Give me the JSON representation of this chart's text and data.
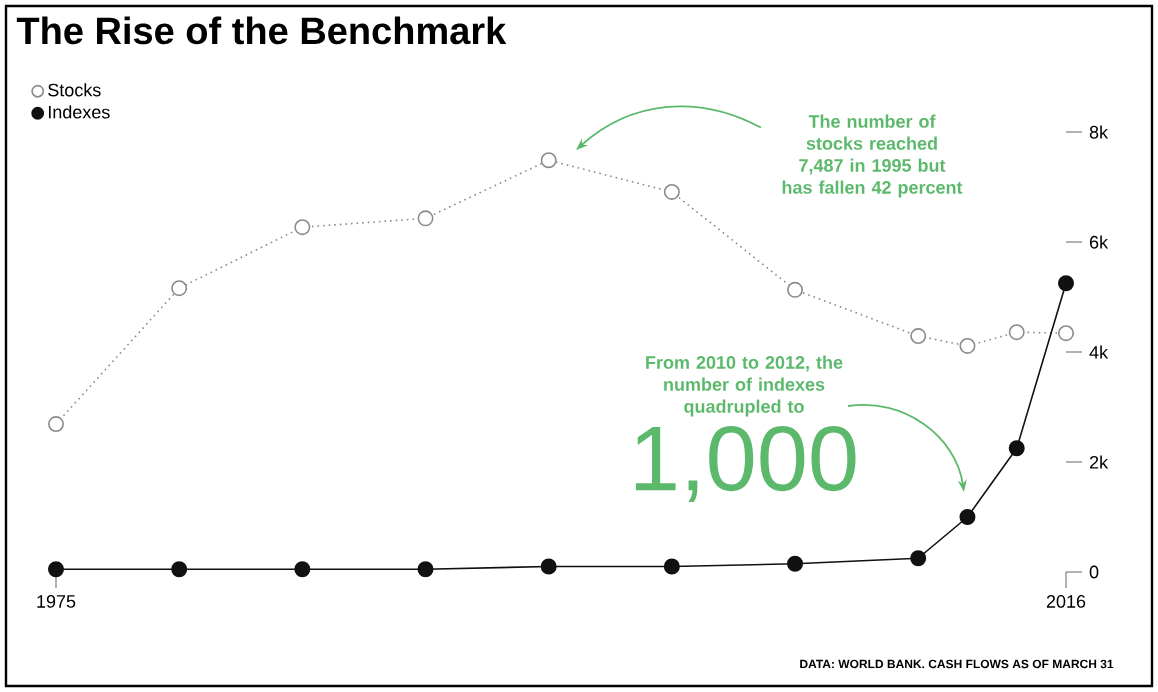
{
  "chart_data": {
    "type": "line",
    "title": "The Rise of the Benchmark",
    "x": [
      1975,
      1980,
      1985,
      1990,
      1995,
      2000,
      2005,
      2010,
      2012,
      2014,
      2016
    ],
    "series": [
      {
        "name": "Stocks",
        "color": "#8a8a8a",
        "line_style": "dotted",
        "values": [
          2690,
          5160,
          6270,
          6430,
          7487,
          6910,
          5130,
          4290,
          4110,
          4360,
          4342
        ]
      },
      {
        "name": "Indexes",
        "color": "#111111",
        "line_style": "solid",
        "values": [
          50,
          50,
          50,
          50,
          100,
          100,
          150,
          250,
          1000,
          2250,
          5250
        ]
      }
    ],
    "xlim": [
      1975,
      2016
    ],
    "xticks": [
      1975,
      2016
    ],
    "ylim": [
      0,
      8000
    ],
    "yticks": [
      0,
      {
        "value": 2000,
        "label": "2k"
      },
      {
        "value": 4000,
        "label": "4k"
      },
      {
        "value": 6000,
        "label": "6k"
      },
      {
        "value": 8000,
        "label": "8k"
      }
    ],
    "marker": "circle",
    "legend": "top left",
    "grid": false,
    "annotations": [
      "The number of stocks reached 7,487 in 1995 but has fallen 42 percent",
      "From 2010 to 2012, the number of indexes quadrupled to",
      "1,000",
      "DATA: WORLD BANK. CASH FLOWS AS OF MARCH 31"
    ]
  }
}
